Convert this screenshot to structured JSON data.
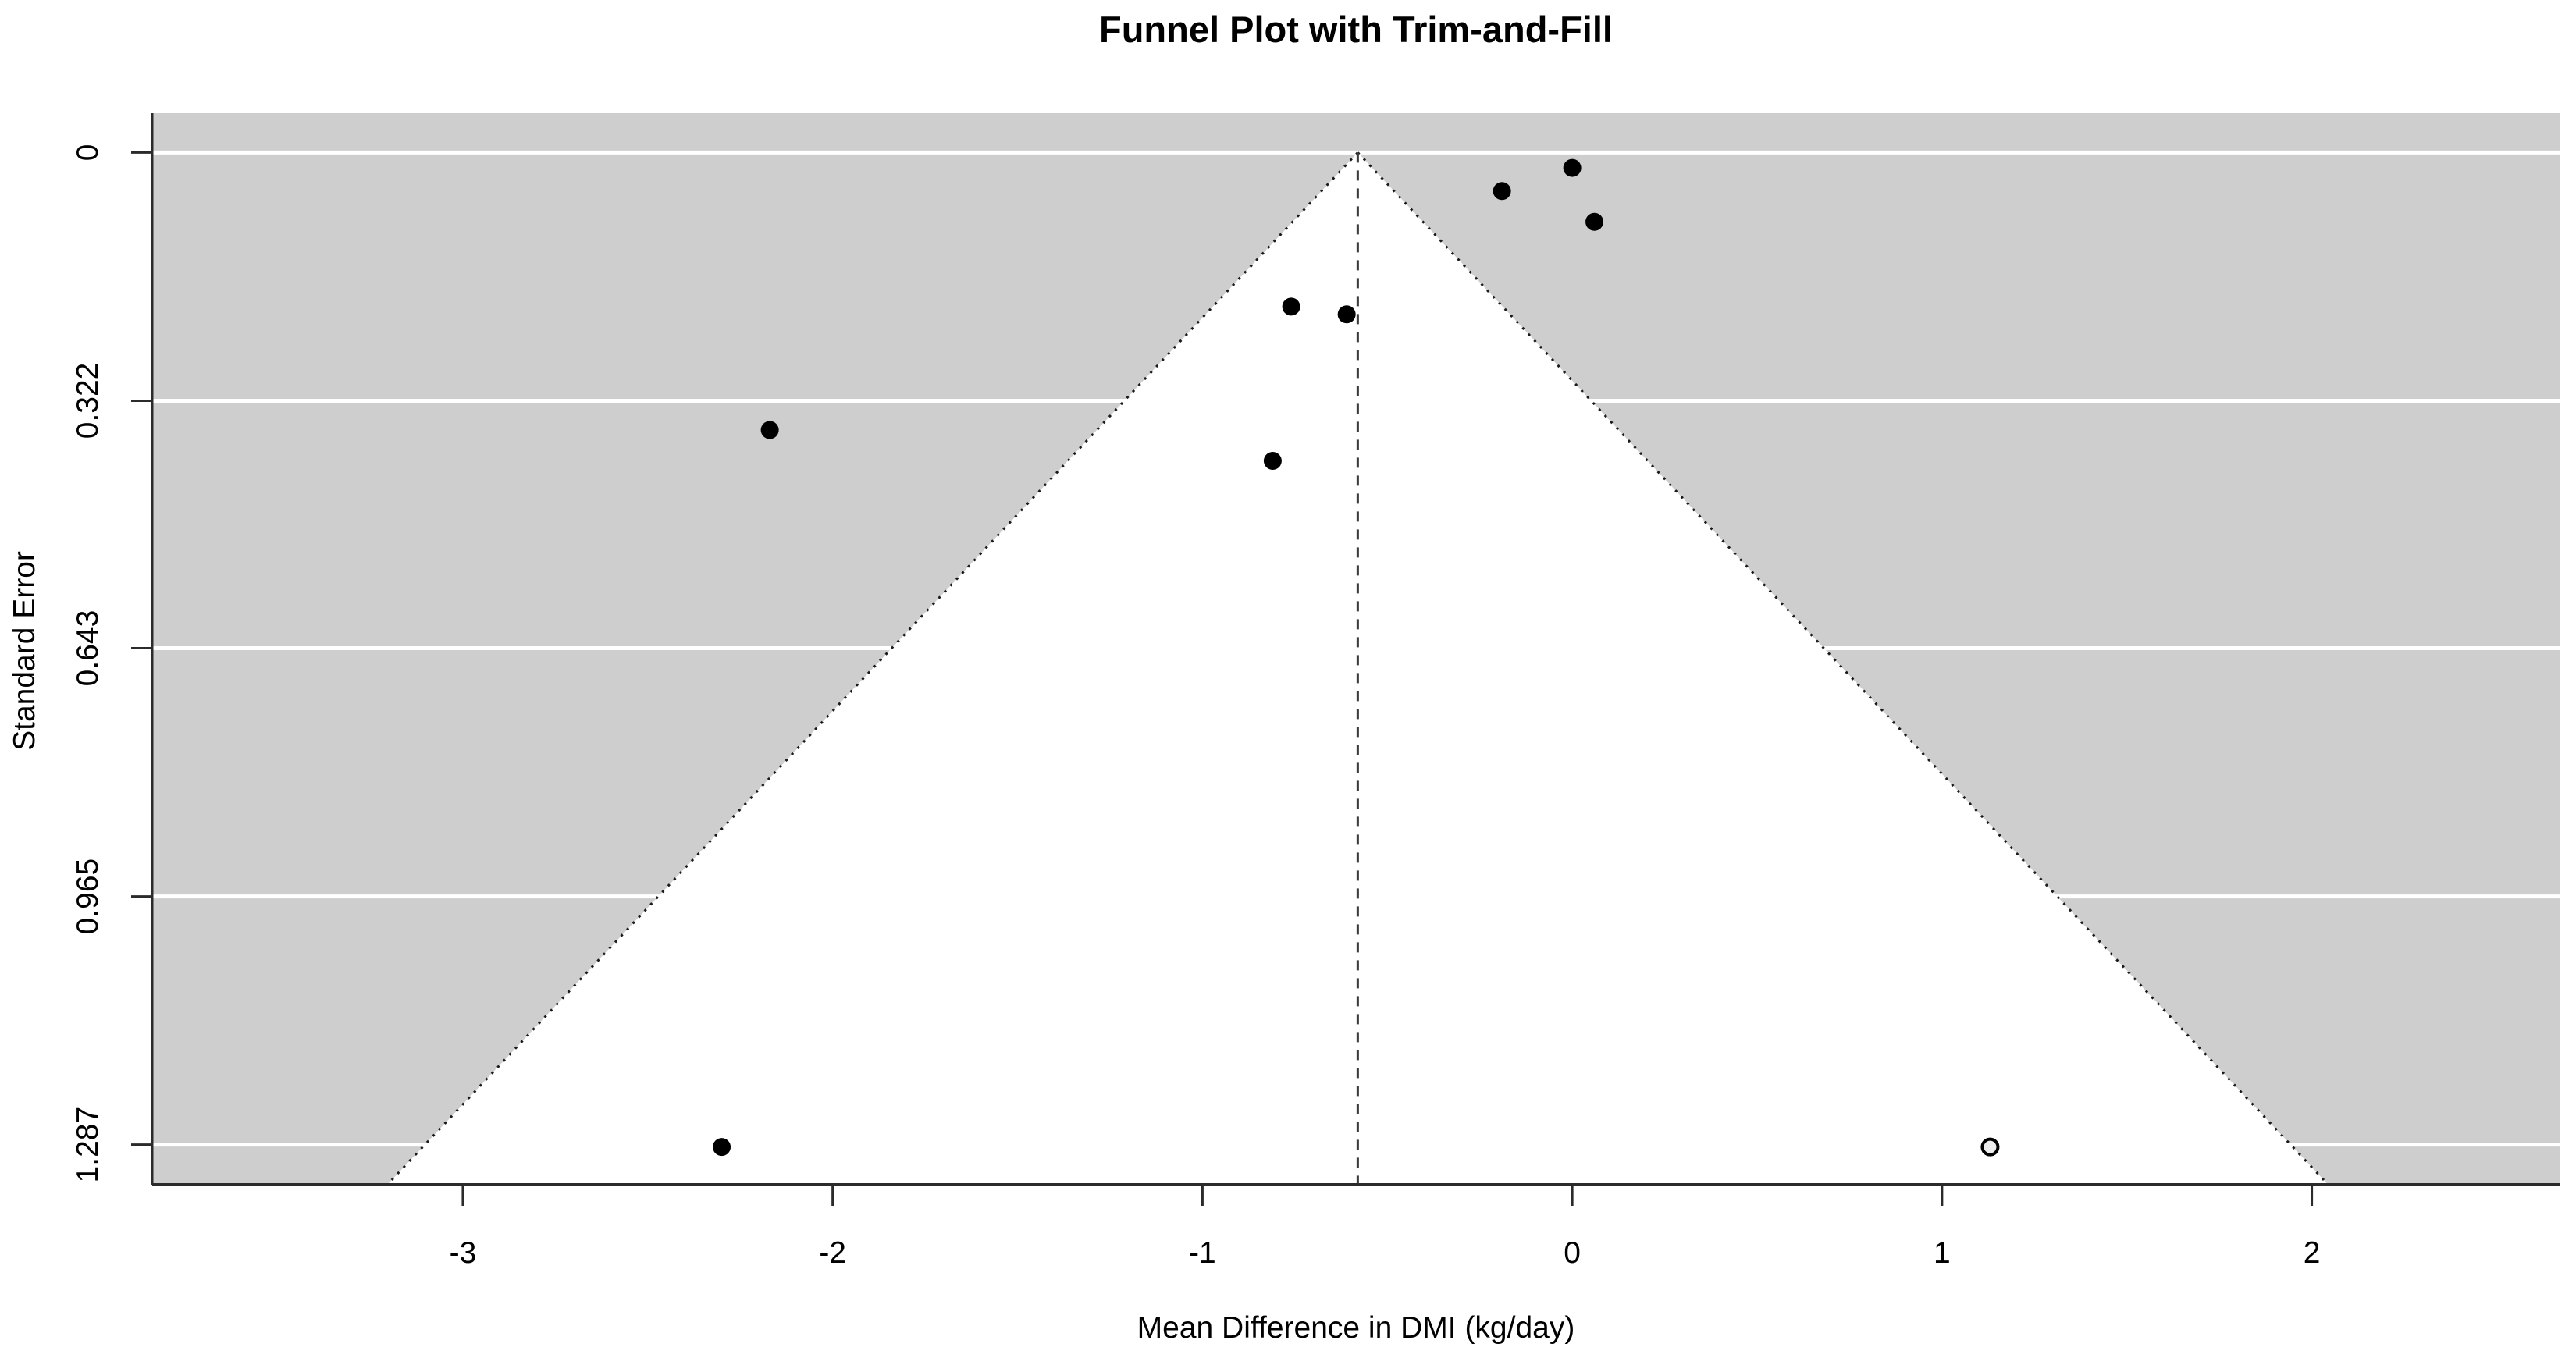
{
  "chart_data": {
    "type": "scatter",
    "subtype": "funnel-plot-trim-and-fill",
    "title": "Funnel Plot with Trim-and-Fill",
    "xlabel": "Mean Difference in DMI (kg/day)",
    "ylabel": "Standard Error",
    "x_tick_labels": [
      "-3",
      "-2",
      "-1",
      "0",
      "1",
      "2"
    ],
    "x_tick_values": [
      -3,
      -2,
      -1,
      0,
      1,
      2
    ],
    "y_tick_labels": [
      "0",
      "0.322",
      "0.643",
      "0.965",
      "1.287"
    ],
    "y_tick_values": [
      0,
      0.322,
      0.643,
      0.965,
      1.287
    ],
    "xlim": [
      -3.84,
      2.67
    ],
    "se_lim": [
      -0.051,
      1.339
    ],
    "pooled_estimate_x": -0.58,
    "funnel_slope_multiplier": 1.96,
    "grid": "horizontal-white-lines-at-y-ticks",
    "legend_position": "none",
    "series": [
      {
        "name": "observed-studies",
        "marker": "filled-circle",
        "points": [
          {
            "x": 0.0,
            "se": 0.02
          },
          {
            "x": -0.19,
            "se": 0.05
          },
          {
            "x": 0.06,
            "se": 0.09
          },
          {
            "x": -0.76,
            "se": 0.2
          },
          {
            "x": -0.61,
            "se": 0.21
          },
          {
            "x": -2.17,
            "se": 0.36
          },
          {
            "x": -0.81,
            "se": 0.4
          },
          {
            "x": -2.3,
            "se": 1.29
          }
        ]
      },
      {
        "name": "imputed-studies",
        "marker": "open-circle",
        "points": [
          {
            "x": 1.13,
            "se": 1.29
          }
        ]
      }
    ],
    "colors": {
      "page_background": "#ffffff",
      "panel_background": "#cecece",
      "funnel_region": "#ffffff",
      "gridline": "#ffffff",
      "funnel_edge": "#1a1a1a",
      "pooled_estimate_line": "#3a3a3a",
      "axis_line": "#2b2b2b",
      "point_fill": "#000000",
      "imputed_point_fill": "#ececec",
      "imputed_point_stroke": "#000000",
      "text": "#000000"
    }
  }
}
